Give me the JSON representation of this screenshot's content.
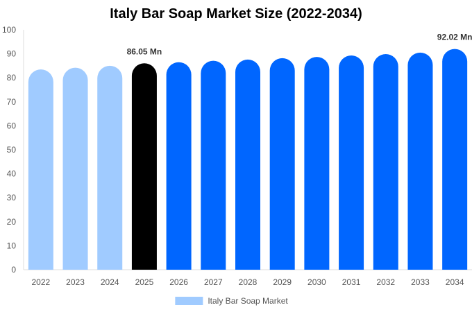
{
  "chart_data": {
    "type": "bar",
    "title": "Italy Bar Soap Market Size (2022-2034)",
    "categories": [
      "2022",
      "2023",
      "2024",
      "2025",
      "2026",
      "2027",
      "2028",
      "2029",
      "2030",
      "2031",
      "2032",
      "2033",
      "2034"
    ],
    "series": [
      {
        "name": "Italy Bar Soap Market",
        "values": [
          83.5,
          84.2,
          85.0,
          86.05,
          86.5,
          87.1,
          87.6,
          88.2,
          88.7,
          89.3,
          89.9,
          90.5,
          92.02
        ]
      }
    ],
    "bar_colors": [
      "#a0cbff",
      "#a0cbff",
      "#a0cbff",
      "#000000",
      "#0066ff",
      "#0066ff",
      "#0066ff",
      "#0066ff",
      "#0066ff",
      "#0066ff",
      "#0066ff",
      "#0066ff",
      "#0066ff"
    ],
    "data_labels": [
      {
        "index": 3,
        "text": "86.05 Mn"
      },
      {
        "index": 12,
        "text": "92.02 Mn"
      }
    ],
    "ylim": [
      0,
      100
    ],
    "yticks": [
      0,
      10,
      20,
      30,
      40,
      50,
      60,
      70,
      80,
      90,
      100
    ],
    "legend_color": "#a0cbff",
    "legend_position": "bottom",
    "grid": false
  }
}
